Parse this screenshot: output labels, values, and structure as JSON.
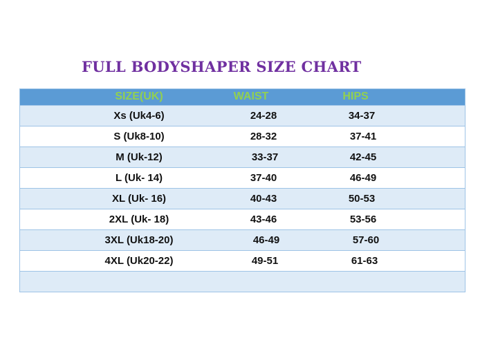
{
  "title": "FULL BODYSHAPER SIZE CHART",
  "colors": {
    "title": "#7030a0",
    "header_bg": "#5b9bd5",
    "header_text": "#92d050",
    "row_alt": "#deebf7",
    "border": "#9dc3e6"
  },
  "headers": [
    "SIZE(UK)",
    "WAIST",
    "HIPS"
  ],
  "rows": [
    [
      "Xs (Uk4-6)",
      "24-28",
      "34-37"
    ],
    [
      "S (Uk8-10)",
      "28-32",
      "37-41"
    ],
    [
      "M (Uk-12)",
      "33-37",
      "42-45"
    ],
    [
      "L (Uk- 14)",
      "37-40",
      "46-49"
    ],
    [
      "XL (Uk- 16)",
      "40-43",
      "50-53"
    ],
    [
      "2XL (Uk- 18)",
      "43-46",
      "53-56"
    ],
    [
      "3XL (Uk18-20)",
      "46-49",
      "57-60"
    ],
    [
      "4XL (Uk20-22)",
      "49-51",
      "61-63"
    ],
    [
      "",
      "",
      ""
    ]
  ]
}
